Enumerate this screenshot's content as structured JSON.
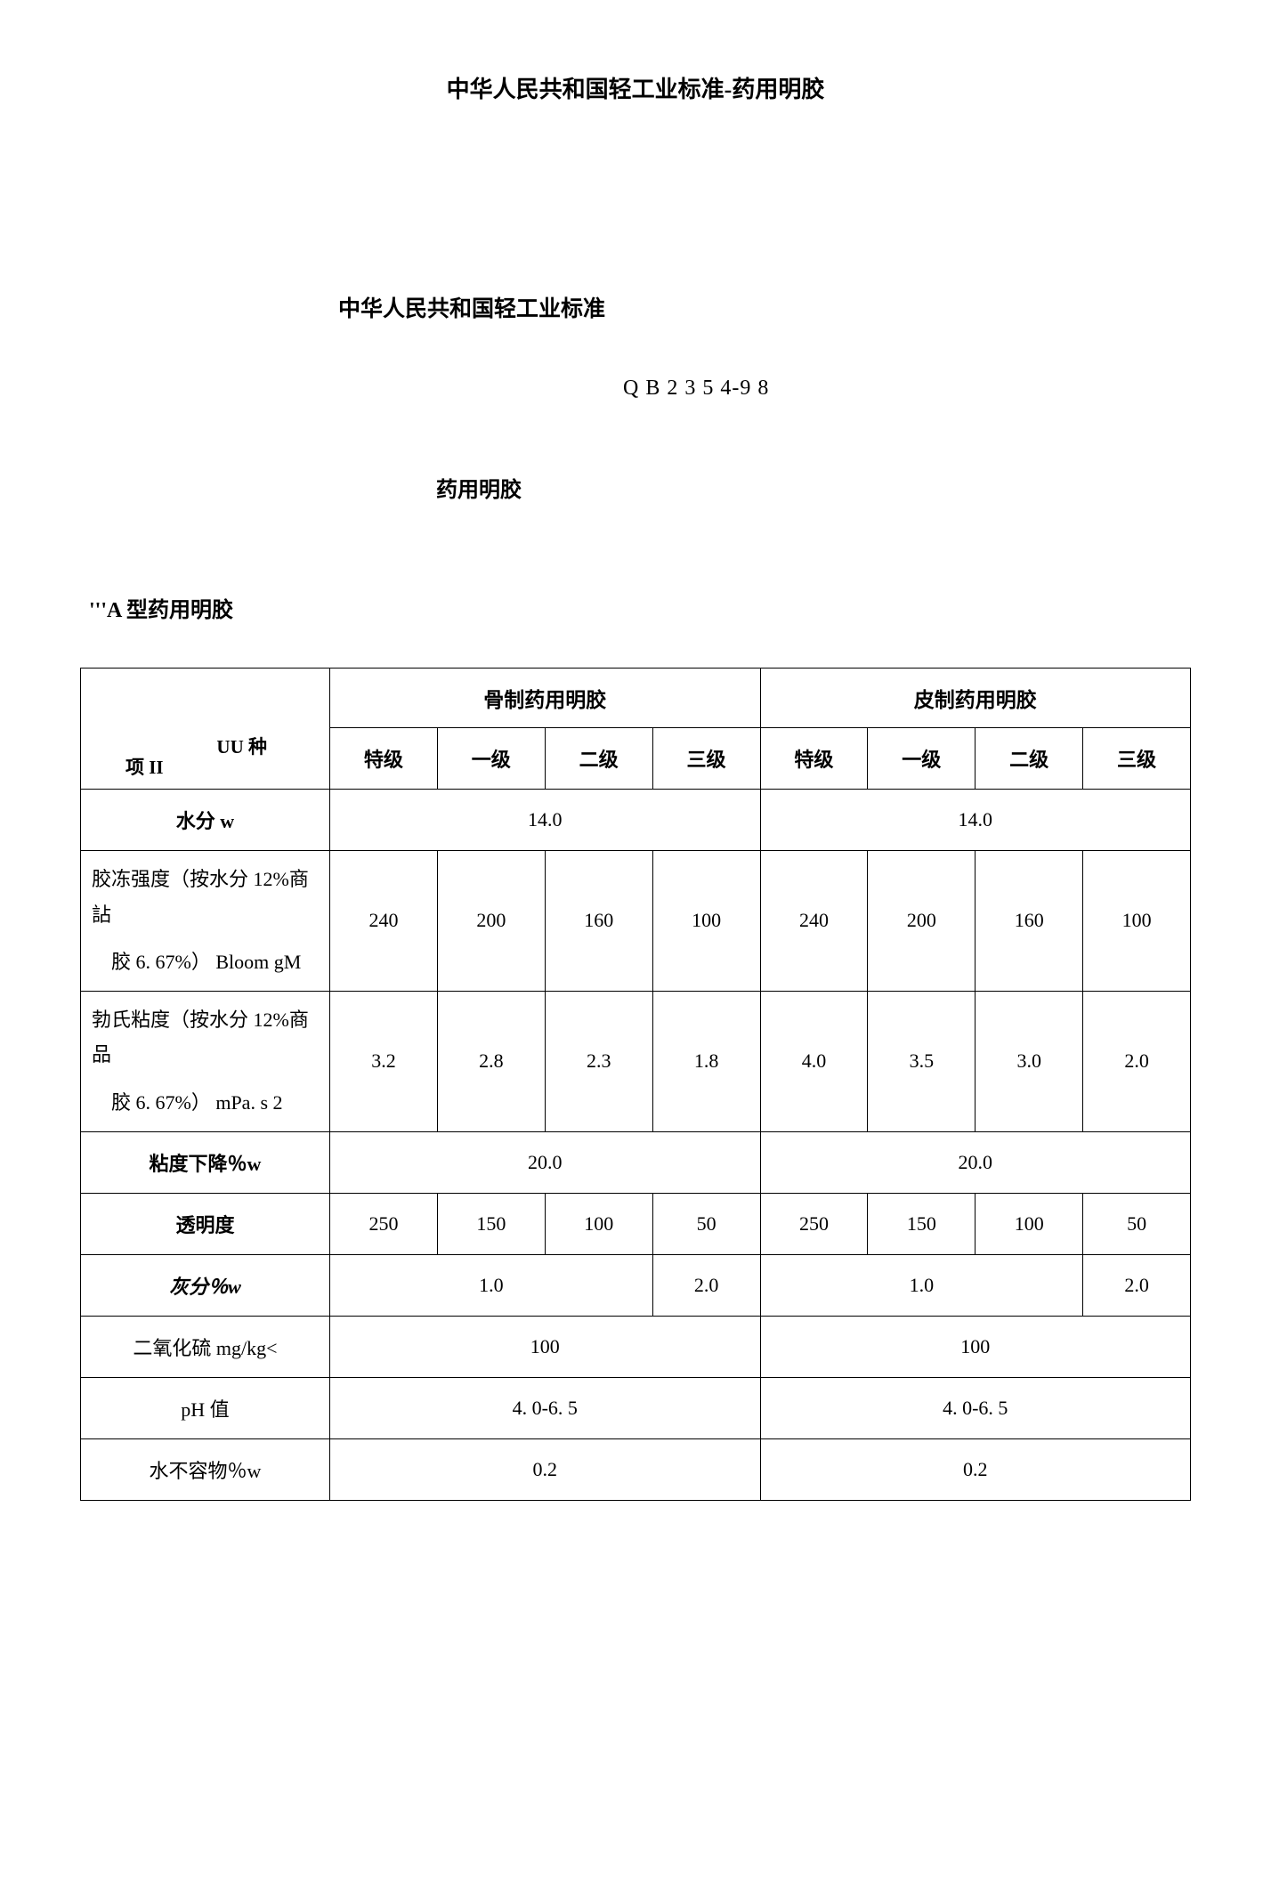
{
  "doc_title": "中华人民共和国轻工业标准-药用明胶",
  "standard_name": "中华人民共和国轻工业标准",
  "standard_code": "Q B 2 3 5 4-9 8",
  "product_name": "药用明胶",
  "section_label": "'''A 型药用明胶",
  "table": {
    "category_col_header": {
      "uu": "UU 种",
      "xiang": "项 II"
    },
    "group_headers": [
      "骨制药用明胶",
      "皮制药用明胶"
    ],
    "grade_headers": [
      "特级",
      "一级",
      "二级",
      "三级",
      "特级",
      "一级",
      "二级",
      "三级"
    ],
    "rows": {
      "moisture": {
        "label": "水分 w",
        "bone_merged": "14.0",
        "skin_merged": "14.0"
      },
      "jelly_strength": {
        "label_line1": "胶冻强度（按水分 12%商詀",
        "label_line2": "胶  6. 67%） Bloom gM",
        "values": [
          "240",
          "200",
          "160",
          "100",
          "240",
          "200",
          "160",
          "100"
        ]
      },
      "viscosity": {
        "label_line1": "勃氏粘度（按水分 12%商品",
        "label_line2": "胶  6. 67%） mPa. s 2",
        "values": [
          "3.2",
          "2.8",
          "2.3",
          "1.8",
          "4.0",
          "3.5",
          "3.0",
          "2.0"
        ]
      },
      "viscosity_drop": {
        "label": "粘度下降％w",
        "bone_merged": "20.0",
        "skin_merged": "20.0"
      },
      "transparency": {
        "label": "透明度",
        "values": [
          "250",
          "150",
          "100",
          "50",
          "250",
          "150",
          "100",
          "50"
        ]
      },
      "ash": {
        "label": "灰分％w",
        "bone3": "1.0",
        "bone_last": "2.0",
        "skin3": "1.0",
        "skin_last": "2.0"
      },
      "so2": {
        "label": "二氧化硫 mg/kg<",
        "bone_merged": "100",
        "skin_merged": "100"
      },
      "ph": {
        "label": "pH 值",
        "bone_merged": "4. 0-6. 5",
        "skin_merged": "4. 0-6. 5"
      },
      "insoluble": {
        "label": "水不容物％w",
        "bone_merged": "0.2",
        "skin_merged": "0.2"
      }
    }
  }
}
